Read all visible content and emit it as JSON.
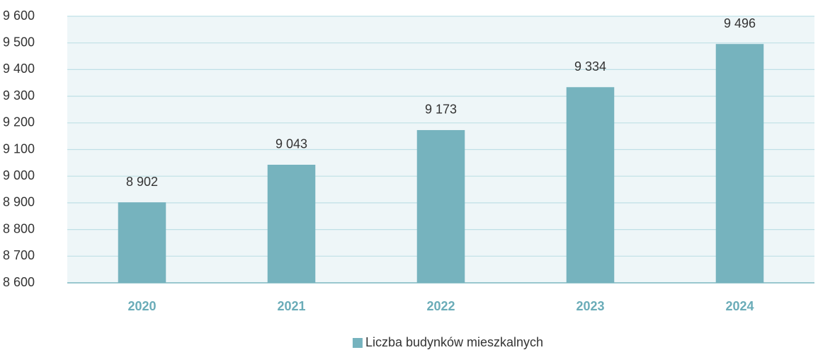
{
  "chart_data": {
    "type": "bar",
    "categories": [
      "2020",
      "2021",
      "2022",
      "2023",
      "2024"
    ],
    "series": [
      {
        "name": "Liczba budynków mieszkalnych",
        "color": "#76b3be",
        "values": [
          8902,
          9043,
          9173,
          9334,
          9496
        ],
        "value_labels": [
          "8 902",
          "9 043",
          "9 173",
          "9 334",
          "9 496"
        ]
      }
    ],
    "ylim": [
      8600,
      9600
    ],
    "yticks": [
      {
        "value": 8600,
        "label": "8 600"
      },
      {
        "value": 8700,
        "label": "8 700"
      },
      {
        "value": 8800,
        "label": "8 800"
      },
      {
        "value": 8900,
        "label": "8 900"
      },
      {
        "value": 9000,
        "label": "9 000"
      },
      {
        "value": 9100,
        "label": "9 100"
      },
      {
        "value": 9200,
        "label": "9 200"
      },
      {
        "value": 9300,
        "label": "9 300"
      },
      {
        "value": 9400,
        "label": "9 400"
      },
      {
        "value": 9500,
        "label": "9 500"
      },
      {
        "value": 9600,
        "label": "9 600"
      }
    ],
    "grid": true,
    "legend": "bottom"
  }
}
